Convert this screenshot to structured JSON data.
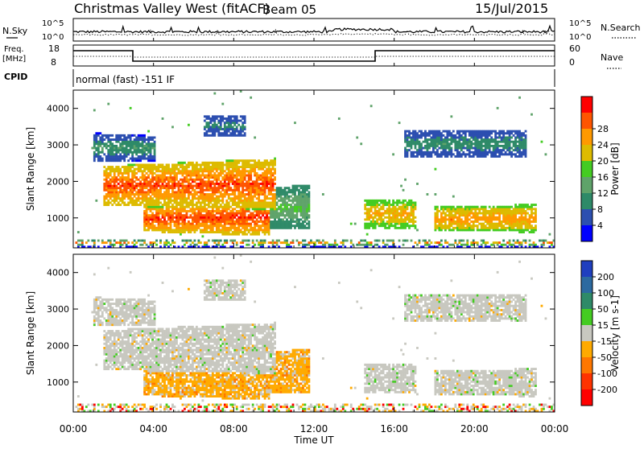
{
  "header": {
    "station": "Christmas Valley West (fitACF)",
    "beam": "Beam 05",
    "date": "15/Jul/2015"
  },
  "noise_panel": {
    "left_label": "N.Sky",
    "right_label": "N.Search",
    "left_ticks": [
      "10^5",
      "10^0"
    ],
    "right_ticks": [
      "10^5",
      "10^0"
    ]
  },
  "freq_panel": {
    "label_line1": "Freq.",
    "label_line2": "[MHz]",
    "left_ticks": [
      "18",
      "8"
    ],
    "right_label": "Nave",
    "right_ticks": [
      "60",
      "0"
    ]
  },
  "cpid": {
    "label": "CPID",
    "text": "normal (fast) -151 IF"
  },
  "chart_data": [
    {
      "type": "heatmap",
      "name": "power",
      "xlabel": "",
      "ylabel": "Slant Range [km]",
      "x_ticks": [
        "00:00",
        "04:00",
        "08:00",
        "12:00",
        "16:00",
        "20:00",
        "00:00"
      ],
      "y_ticks": [
        "1000",
        "2000",
        "3000",
        "4000"
      ],
      "colorbar": {
        "label": "Power [dB]",
        "ticks": [
          "4",
          "8",
          "12",
          "16",
          "20",
          "24",
          "28"
        ],
        "colors": [
          "#0000ff",
          "#2c4fb0",
          "#2e8a68",
          "#5fa36a",
          "#44cc22",
          "#ddbb00",
          "#ff9900",
          "#ff5500",
          "#ff0000"
        ]
      },
      "regions_note": "echo bands: 1.5-10 h at 1300-2400 km, 3.5-10 h at 600-1300 km, 1.5-4 h near 3000 km, 14.5-23 h at 700-1500 km"
    },
    {
      "type": "heatmap",
      "name": "velocity",
      "xlabel": "Time UT",
      "ylabel": "Slant Range [km]",
      "x_ticks": [
        "00:00",
        "04:00",
        "08:00",
        "12:00",
        "16:00",
        "20:00",
        "00:00"
      ],
      "y_ticks": [
        "1000",
        "2000",
        "3000",
        "4000"
      ],
      "colorbar": {
        "label": "Velocity [m s-1]",
        "ticks": [
          "200",
          "100",
          "50",
          "15",
          "-15",
          "-50",
          "-100",
          "-200"
        ],
        "colors": [
          "#1f3fbf",
          "#2c6aa0",
          "#2e8a68",
          "#44cc22",
          "#c8c8c0",
          "#ffaa00",
          "#ff7700",
          "#ff3300",
          "#ff0000"
        ]
      }
    }
  ]
}
